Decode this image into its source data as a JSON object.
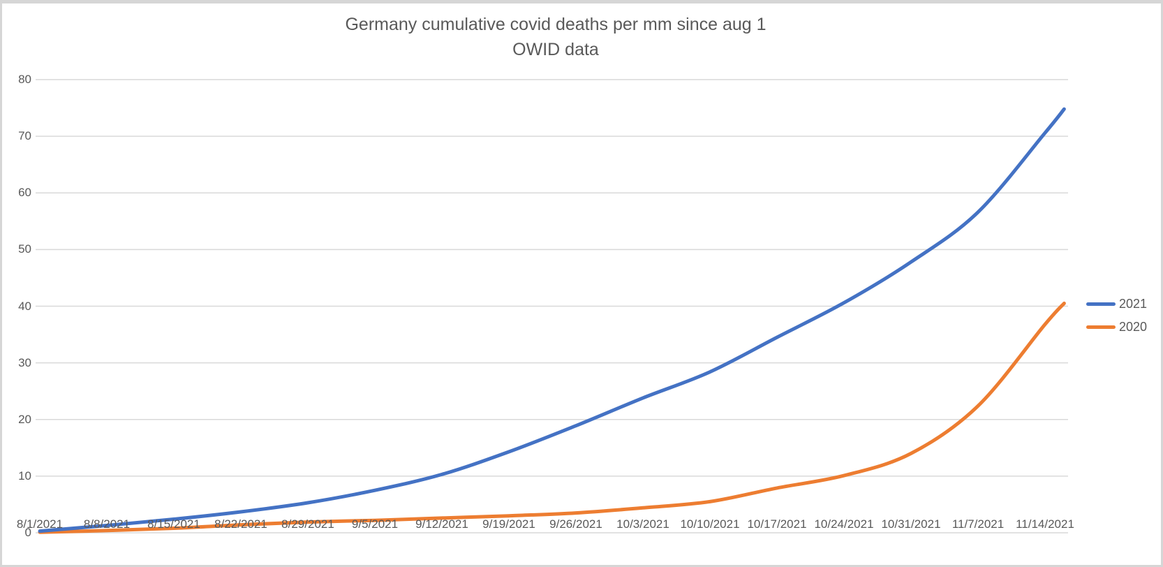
{
  "ui": {
    "colors": {
      "background": "#ffffff",
      "frame_border": "#d6d6d6",
      "gridline": "#d9d9d9",
      "axis_line": "#d9d9d9",
      "text": "#595959",
      "series_2021": "#4472C4",
      "series_2020": "#ED7D31"
    }
  },
  "chart_data": {
    "type": "line",
    "title": "Germany cumulative covid deaths per mm since aug 1",
    "subtitle": "OWID data",
    "xlabel": "",
    "ylabel": "",
    "ylim": [
      0,
      80
    ],
    "y_ticks": [
      0,
      10,
      20,
      30,
      40,
      50,
      60,
      70,
      80
    ],
    "grid": true,
    "legend_position": "right",
    "x_tick_labels": [
      "8/1/2021",
      "8/8/2021",
      "8/15/2021",
      "8/22/2021",
      "8/29/2021",
      "9/5/2021",
      "9/12/2021",
      "9/19/2021",
      "9/26/2021",
      "10/3/2021",
      "10/10/2021",
      "10/17/2021",
      "10/24/2021",
      "10/31/2021",
      "11/7/2021",
      "11/14/2021"
    ],
    "x_tick_days": [
      0,
      7,
      14,
      21,
      28,
      35,
      42,
      49,
      56,
      63,
      70,
      77,
      84,
      91,
      98,
      105
    ],
    "series": [
      {
        "name": "2021",
        "color": "#4472C4",
        "x_days": [
          0,
          7,
          14,
          21,
          28,
          35,
          42,
          49,
          56,
          63,
          70,
          77,
          84,
          91,
          98,
          105,
          107
        ],
        "values": [
          0.3,
          1.3,
          2.4,
          3.7,
          5.3,
          7.5,
          10.3,
          14.3,
          18.9,
          23.8,
          28.4,
          34.5,
          40.6,
          47.8,
          56.6,
          70.6,
          74.8
        ]
      },
      {
        "name": "2020",
        "color": "#ED7D31",
        "x_days": [
          0,
          7,
          14,
          21,
          28,
          35,
          42,
          49,
          56,
          63,
          70,
          77,
          84,
          91,
          98,
          105,
          107
        ],
        "values": [
          0.1,
          0.4,
          0.8,
          1.4,
          1.9,
          2.2,
          2.6,
          3.0,
          3.5,
          4.4,
          5.5,
          7.9,
          10.1,
          14.0,
          22.4,
          36.8,
          40.5
        ]
      }
    ]
  }
}
